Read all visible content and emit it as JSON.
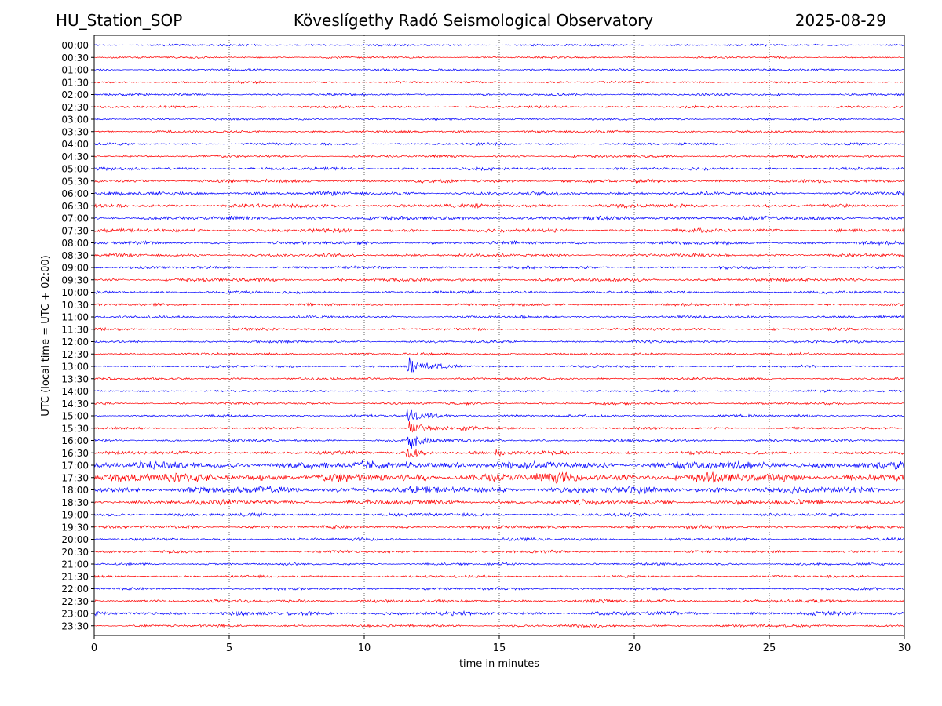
{
  "header": {
    "station": "HU_Station_SOP",
    "observatory": "Köveslígethy Radó Seismological Observatory",
    "date": "2025-08-29"
  },
  "chart_data": {
    "type": "line",
    "title": "Köveslígethy Radó Seismological Observatory",
    "xlabel": "time in minutes",
    "ylabel": "UTC (local time = UTC + 02:00)",
    "xlim": [
      0,
      30
    ],
    "x_ticks": [
      0,
      5,
      10,
      15,
      20,
      25,
      30
    ],
    "grid": "vertical dotted at x ticks",
    "series_colors": [
      "#0000ff",
      "#ff0000"
    ],
    "rows": [
      "00:00",
      "00:30",
      "01:00",
      "01:30",
      "02:00",
      "02:30",
      "03:00",
      "03:30",
      "04:00",
      "04:30",
      "05:00",
      "05:30",
      "06:00",
      "06:30",
      "07:00",
      "07:30",
      "08:00",
      "08:30",
      "09:00",
      "09:30",
      "10:00",
      "10:30",
      "11:00",
      "11:30",
      "12:00",
      "12:30",
      "13:00",
      "13:30",
      "14:00",
      "14:30",
      "15:00",
      "15:30",
      "16:00",
      "16:30",
      "17:00",
      "17:30",
      "18:00",
      "18:30",
      "19:00",
      "19:30",
      "20:00",
      "20:30",
      "21:00",
      "21:30",
      "22:00",
      "22:30",
      "23:00",
      "23:30"
    ],
    "noise_level": [
      0.45,
      0.4,
      0.45,
      0.45,
      0.5,
      0.5,
      0.45,
      0.5,
      0.5,
      0.55,
      0.6,
      0.7,
      0.75,
      0.8,
      0.85,
      0.75,
      0.7,
      0.65,
      0.6,
      0.7,
      0.6,
      0.55,
      0.55,
      0.55,
      0.5,
      0.5,
      0.5,
      0.5,
      0.45,
      0.5,
      0.5,
      0.5,
      0.55,
      0.7,
      1.6,
      1.9,
      1.4,
      1.0,
      0.7,
      0.7,
      0.6,
      0.55,
      0.5,
      0.5,
      0.55,
      0.7,
      0.8,
      0.55
    ],
    "events": [
      {
        "row": "13:00",
        "minute": 11.6,
        "amplitude": 12
      },
      {
        "row": "15:00",
        "minute": 11.6,
        "amplitude": 9
      },
      {
        "row": "15:30",
        "minute": 11.7,
        "amplitude": 8
      },
      {
        "row": "15:30",
        "minute": 13.6,
        "amplitude": 3
      },
      {
        "row": "16:00",
        "minute": 11.65,
        "amplitude": 10
      },
      {
        "row": "16:30",
        "minute": 11.6,
        "amplitude": 7
      },
      {
        "row": "16:30",
        "minute": 14.9,
        "amplitude": 4
      },
      {
        "row": "17:00",
        "minute": 11.6,
        "amplitude": 3
      }
    ]
  }
}
